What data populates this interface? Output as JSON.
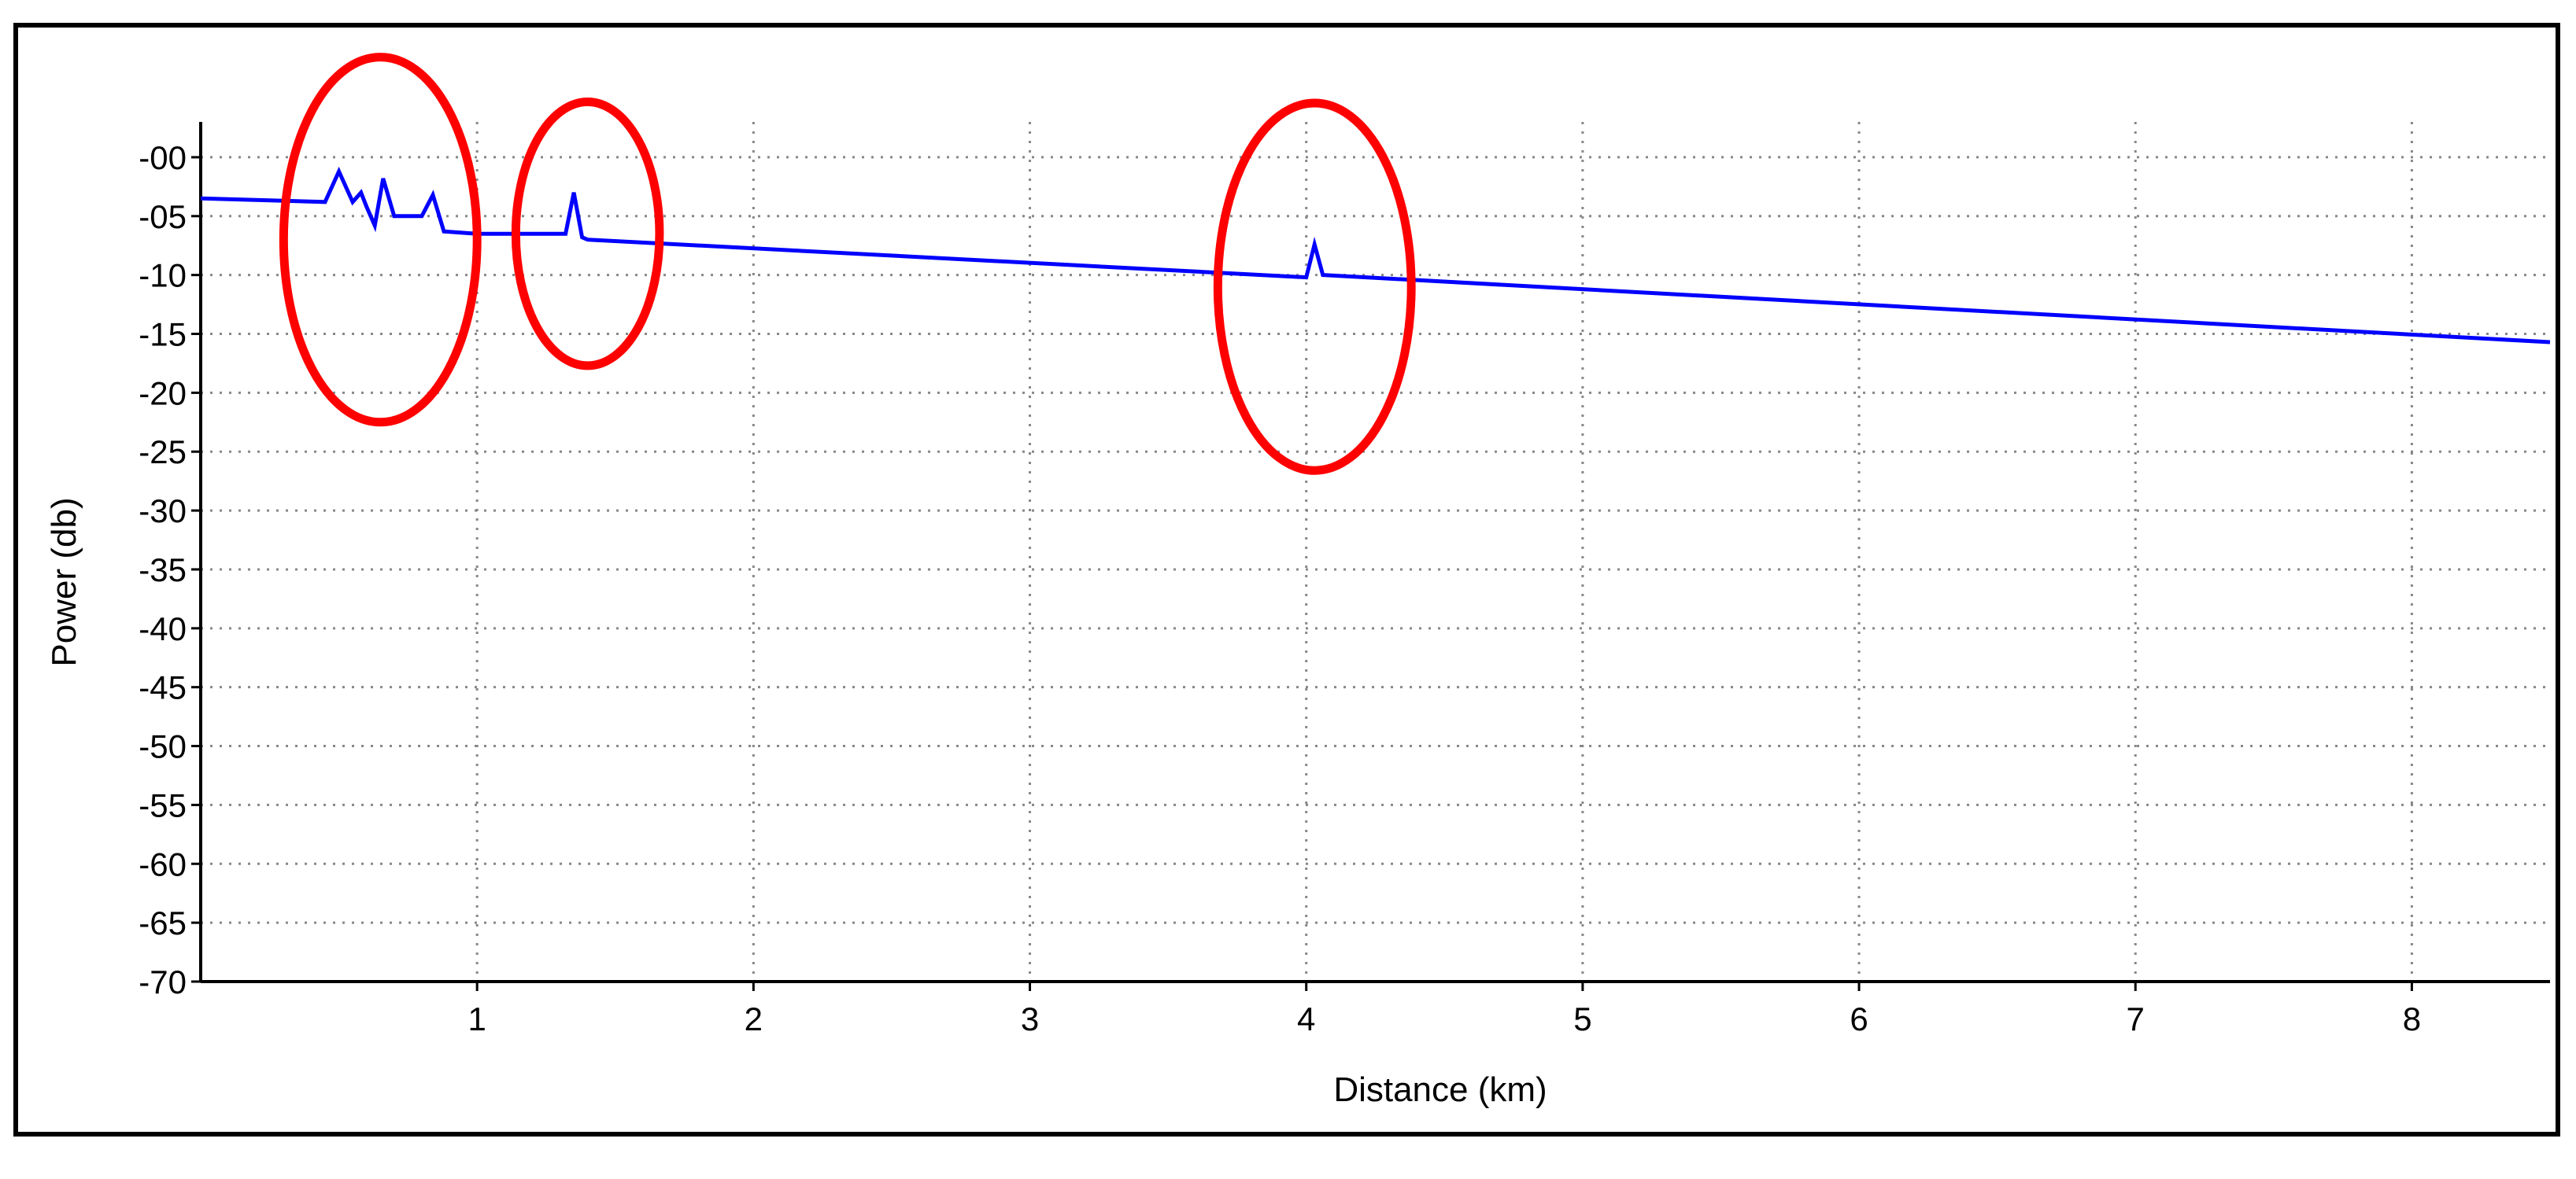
{
  "chart_data": {
    "type": "line",
    "title": "",
    "xlabel": "Distance (km)",
    "ylabel": "Power (db)",
    "xlim": [
      0,
      8.5
    ],
    "ylim": [
      -70,
      3
    ],
    "x_ticks": [
      1,
      2,
      3,
      4,
      5,
      6,
      7,
      8
    ],
    "x_tick_labels": [
      "1",
      "2",
      "3",
      "4",
      "5",
      "6",
      "7",
      "8"
    ],
    "y_ticks": [
      0,
      -5,
      -10,
      -15,
      -20,
      -25,
      -30,
      -35,
      -40,
      -45,
      -50,
      -55,
      -60,
      -65,
      -70
    ],
    "y_tick_labels": [
      "-00",
      "-05",
      "-10",
      "-15",
      "-20",
      "-25",
      "-30",
      "-35",
      "-40",
      "-45",
      "-50",
      "-55",
      "-60",
      "-65",
      "-70"
    ],
    "grid": true,
    "grid_style": "dotted",
    "legend": "none",
    "series": [
      {
        "color": "#0000ff",
        "x": [
          0,
          0.45,
          0.5,
          0.55,
          0.58,
          0.6,
          0.63,
          0.66,
          0.7,
          0.75,
          0.8,
          0.84,
          0.88,
          1.0,
          1.32,
          1.35,
          1.38,
          1.4,
          4.0,
          4.03,
          4.06,
          8.5
        ],
        "y": [
          -3.5,
          -3.8,
          -1.2,
          -3.8,
          -3.0,
          -4.2,
          -5.8,
          -1.8,
          -5.0,
          -5.0,
          -5.0,
          -3.2,
          -6.3,
          -6.5,
          -6.5,
          -3.0,
          -6.8,
          -7.0,
          -10.2,
          -7.4,
          -10.0,
          -15.7
        ]
      }
    ],
    "annotations": [
      {
        "shape": "ellipse",
        "color": "#ff0000",
        "cx": 0.65,
        "cy": -7,
        "rx": 0.35,
        "ry": 15.5
      },
      {
        "shape": "ellipse",
        "color": "#ff0000",
        "cx": 1.4,
        "cy": -6.5,
        "rx": 0.26,
        "ry": 11.2
      },
      {
        "shape": "ellipse",
        "color": "#ff0000",
        "cx": 4.03,
        "cy": -11,
        "rx": 0.35,
        "ry": 15.6
      }
    ],
    "axis_color": "#000000",
    "grid_color": "#888888",
    "frame_color": "#000000"
  }
}
